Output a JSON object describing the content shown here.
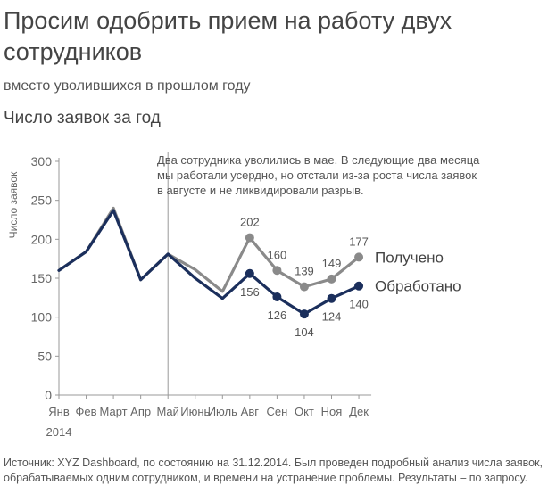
{
  "title": "Просим одобрить прием на работу двух сотрудников",
  "subtitle": "вместо уволившихся в прошлом году",
  "source": "Источник: XYZ Dashboard, по состоянию на 31.12.2014. Был проведен подробный анализ числа заявок, обрабатываемых одним сотрудником, и времени на устранение проблемы. Результаты – по запросу.",
  "chart_data": {
    "type": "line",
    "title": "Число заявок за год",
    "xlabel": "",
    "ylabel": "Число заявок",
    "year_label": "2014",
    "categories": [
      "Янв",
      "Фев",
      "Март",
      "Апр",
      "Май",
      "Июнь",
      "Июль",
      "Авг",
      "Сен",
      "Окт",
      "Ноя",
      "Дек"
    ],
    "yticks": [
      "0",
      "50",
      "100",
      "150",
      "200",
      "250",
      "300"
    ],
    "ylim": [
      0,
      300
    ],
    "annotation": [
      "Два сотрудника уволились в мае. В следующие два месяца",
      "мы работали усердно, но отстали из-за роста числа заявок",
      "в августе и не ликвидировали разрыв."
    ],
    "divider_month": "Май",
    "series": [
      {
        "name": "Получено",
        "color": "#8a8a8a",
        "values": [
          160,
          184,
          240,
          148,
          181,
          161,
          133,
          202,
          160,
          139,
          149,
          177
        ],
        "labels": {
          "7": "202",
          "8": "160",
          "9": "139",
          "10": "149",
          "11": "177"
        }
      },
      {
        "name": "Обработано",
        "color": "#1b2f5c",
        "values": [
          160,
          184,
          237,
          148,
          181,
          150,
          124,
          156,
          126,
          104,
          124,
          140
        ],
        "labels": {
          "7": "156",
          "8": "126",
          "9": "104",
          "10": "124",
          "11": "140"
        }
      }
    ]
  }
}
